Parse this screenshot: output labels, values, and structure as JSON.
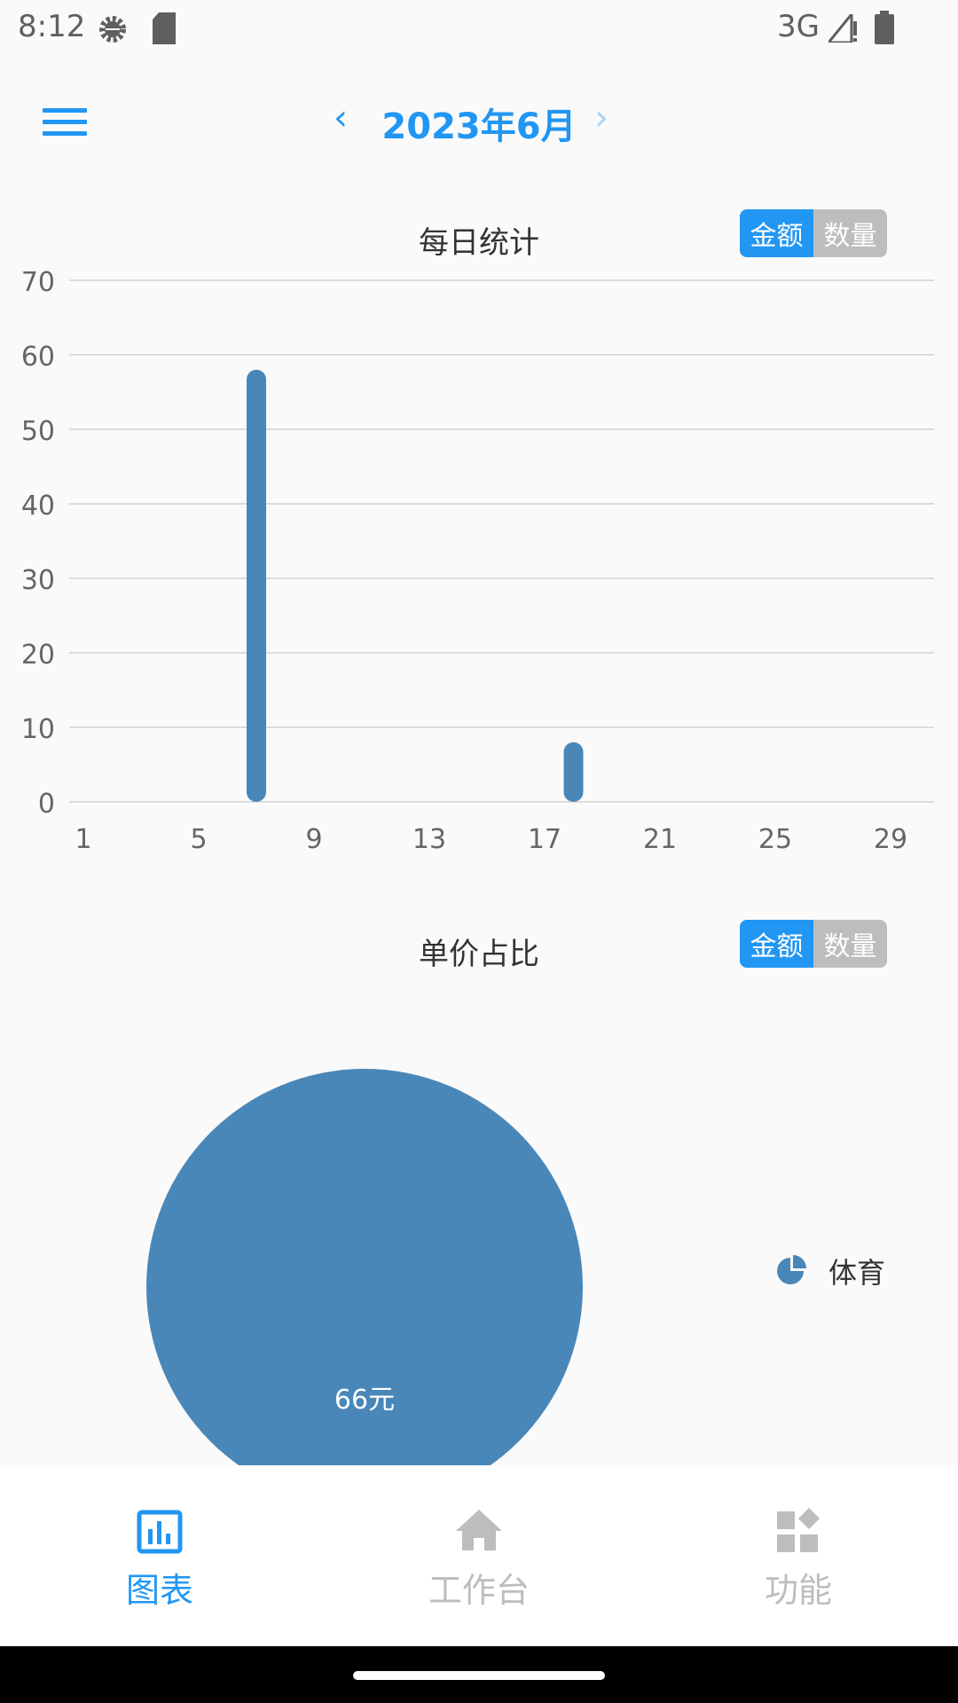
{
  "status_bar": {
    "time": "8:12",
    "network": "3G",
    "icons": [
      "settings-gear-icon",
      "sd-card-icon",
      "signal-icon",
      "battery-icon"
    ]
  },
  "header": {
    "menu_icon": "hamburger-menu-icon",
    "month": "2023年6月",
    "prev_icon": "chevron-left-icon",
    "next_icon": "chevron-right-icon"
  },
  "daily_chart": {
    "title": "每日统计",
    "toggle": {
      "active": "金额",
      "inactive": "数量"
    }
  },
  "price_chart": {
    "title": "单价占比",
    "toggle": {
      "active": "金额",
      "inactive": "数量"
    }
  },
  "chart_data": [
    {
      "type": "bar",
      "title": "每日统计",
      "x_ticks": [
        "1",
        "5",
        "9",
        "13",
        "17",
        "21",
        "25",
        "29"
      ],
      "y_ticks": [
        "0",
        "10",
        "20",
        "30",
        "40",
        "50",
        "60",
        "70"
      ],
      "ylim": [
        0,
        70
      ],
      "xlim": [
        1,
        30
      ],
      "grid": true,
      "color": "#4a87b9",
      "points": [
        {
          "x": 7,
          "y": 58
        },
        {
          "x": 18,
          "y": 8
        }
      ]
    },
    {
      "type": "pie",
      "title": "单价占比",
      "slices": [
        {
          "name": "体育",
          "value": 66,
          "label": "66元",
          "color": "#4a87b9"
        }
      ],
      "legend": "right"
    }
  ],
  "bottom_nav": {
    "items": [
      {
        "label": "图表",
        "icon": "bar-chart-icon",
        "active": true
      },
      {
        "label": "工作台",
        "icon": "home-icon",
        "active": false
      },
      {
        "label": "功能",
        "icon": "widgets-icon",
        "active": false
      }
    ]
  },
  "colors": {
    "accent": "#2196f3",
    "bar": "#4a87b9",
    "inactive": "#bdbdbd"
  }
}
